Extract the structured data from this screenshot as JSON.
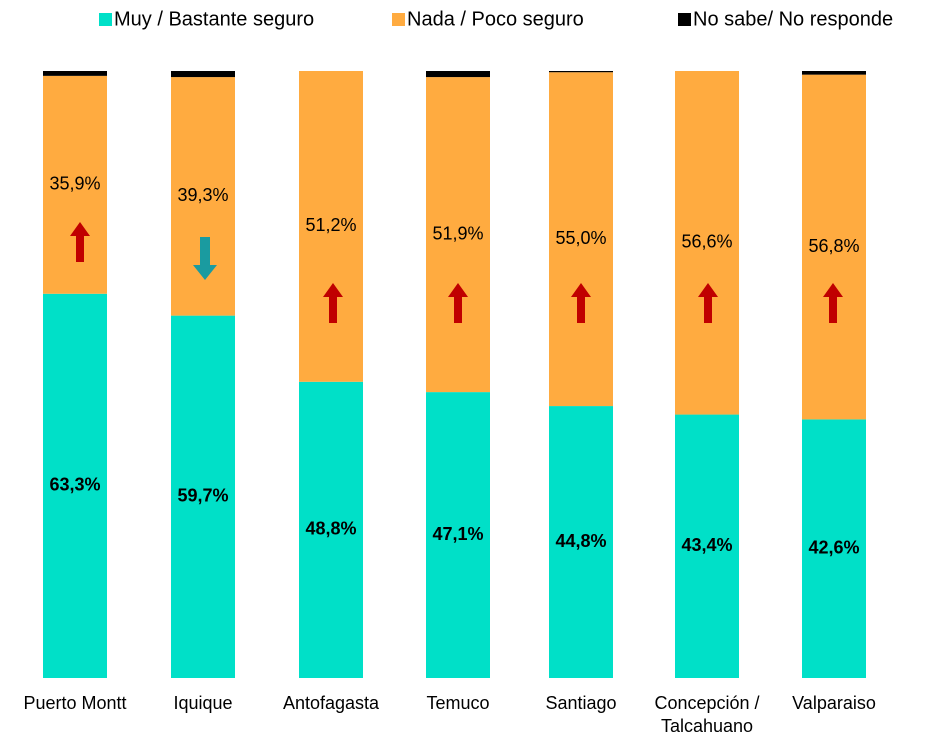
{
  "chart_data": {
    "type": "stacked-bar",
    "categories": [
      "Puerto Montt",
      "Iquique",
      "Antofagasta",
      "Temuco",
      "Santiago",
      "Concepción / Talcahuano",
      "Valparaiso"
    ],
    "ylim": [
      0,
      100
    ],
    "series": [
      {
        "name": "Muy / Bastante seguro",
        "color": "#00e0c8",
        "values": [
          63.3,
          59.7,
          48.8,
          47.1,
          44.8,
          43.4,
          42.6
        ],
        "value_labels": [
          "63,3%",
          "59,7%",
          "48,8%",
          "47,1%",
          "44,8%",
          "43,4%",
          "42,6%"
        ]
      },
      {
        "name": "Nada / Poco seguro",
        "color": "#ffab40",
        "values": [
          35.9,
          39.3,
          51.2,
          51.9,
          55.0,
          56.6,
          56.8
        ],
        "value_labels": [
          "35,9%",
          "39,3%",
          "51,2%",
          "51,9%",
          "55,0%",
          "56,6%",
          "56,8%"
        ]
      },
      {
        "name": "No sabe/ No responde",
        "color": "#000000",
        "values": [
          0.8,
          1.0,
          0,
          1.0,
          0.2,
          0,
          0.6
        ]
      }
    ],
    "legend": "top"
  }
}
